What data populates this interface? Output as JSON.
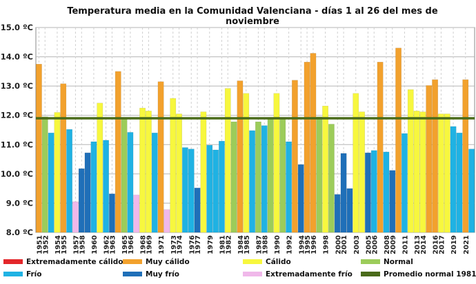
{
  "chart_data": {
    "type": "bar",
    "title": "Temperatura media en la Comunidad Valenciana - días 1 al 26 del mes de noviembre",
    "xlabel": "",
    "ylabel": "",
    "ylim": [
      8.0,
      15.0
    ],
    "yticks": [
      "8.0 ºC",
      "9.0 ºC",
      "10.0 ºC",
      "11.0 ºC",
      "12.0 ºC",
      "13.0 ºC",
      "14.0 ºC",
      "15.0 ºC"
    ],
    "grid": true,
    "legend_position": "bottom",
    "reference_line": {
      "name": "Promedio normal 1981-2010",
      "value": 11.9,
      "color": "#4a6b1a"
    },
    "categories_legend": [
      {
        "key": "xcal",
        "name": "Extremadamente cálido",
        "color": "#e3262a"
      },
      {
        "key": "mcal",
        "name": "Muy cálido",
        "color": "#f2a12d"
      },
      {
        "key": "cal",
        "name": "Cálido",
        "color": "#f7f73e"
      },
      {
        "key": "norm",
        "name": "Normal",
        "color": "#9ccc5a"
      },
      {
        "key": "frio",
        "name": "Frío",
        "color": "#1fb2e3"
      },
      {
        "key": "mfrio",
        "name": "Muy frío",
        "color": "#1f6fb8"
      },
      {
        "key": "xfrio",
        "name": "Extremadamente frío",
        "color": "#f0b8ea"
      },
      {
        "key": "prom",
        "name": "Promedio normal 1981-2010",
        "color": "#4a6b1a"
      }
    ],
    "categories": [
      "1951",
      "1952",
      "1953",
      "1954",
      "1955",
      "1956",
      "1957",
      "1958",
      "1959",
      "1960",
      "1961",
      "1962",
      "1963",
      "1964",
      "1965",
      "1966",
      "1967",
      "1968",
      "1969",
      "1970",
      "1971",
      "1972",
      "1973",
      "1974",
      "1975",
      "1976",
      "1977",
      "1978",
      "1979",
      "1980",
      "1981",
      "1982",
      "1983",
      "1984",
      "1985",
      "1986",
      "1987",
      "1988",
      "1989",
      "1990",
      "1991",
      "1992",
      "1993",
      "1994",
      "1995",
      "1996",
      "1997",
      "1998",
      "1999",
      "2000",
      "2001",
      "2002",
      "2003",
      "2004",
      "2005",
      "2006",
      "2007",
      "2008",
      "2009",
      "2010",
      "2011",
      "2012",
      "2013",
      "2014",
      "2015",
      "2016",
      "2017",
      "2018",
      "2019",
      "2020",
      "2021",
      "2022"
    ],
    "tick_labels": [
      "1951",
      "1952",
      "1954",
      "1955",
      "1957",
      "1958",
      "1960",
      "1962",
      "1963",
      "1965",
      "1966",
      "1968",
      "1969",
      "1971",
      "1973",
      "1974",
      "1976",
      "1977",
      "1979",
      "1981",
      "1982",
      "1984",
      "1985",
      "1987",
      "1988",
      "1990",
      "1992",
      "1994",
      "1995",
      "1996",
      "1998",
      "2000",
      "2001",
      "2003",
      "2005",
      "2006",
      "2008",
      "2009",
      "2011",
      "2013",
      "2014",
      "2016",
      "2017",
      "2019",
      "2021"
    ],
    "values": [
      13.75,
      11.95,
      11.4,
      12.1,
      13.08,
      11.52,
      9.05,
      10.18,
      10.72,
      11.1,
      12.42,
      11.15,
      9.32,
      13.5,
      11.9,
      11.42,
      9.28,
      12.25,
      12.15,
      11.4,
      13.15,
      8.78,
      12.58,
      12.05,
      10.9,
      10.85,
      9.52,
      12.12,
      10.98,
      10.82,
      11.12,
      12.92,
      11.78,
      13.18,
      12.75,
      11.48,
      11.78,
      11.65,
      11.88,
      12.75,
      11.92,
      11.1,
      13.2,
      10.32,
      13.82,
      14.12,
      11.95,
      12.32,
      11.7,
      9.3,
      10.7,
      9.5,
      12.75,
      12.12,
      10.72,
      10.8,
      13.82,
      10.75,
      10.12,
      14.3,
      11.38,
      12.88,
      12.15,
      12.12,
      13.02,
      13.22,
      12.05,
      12.05,
      11.62,
      11.4,
      13.22,
      10.85
    ],
    "classes": [
      "mcal",
      "norm",
      "frio",
      "cal",
      "mcal",
      "frio",
      "xfrio",
      "mfrio",
      "mfrio",
      "frio",
      "cal",
      "frio",
      "mfrio",
      "mcal",
      "norm",
      "frio",
      "xfrio",
      "cal",
      "cal",
      "frio",
      "mcal",
      "xfrio",
      "cal",
      "cal",
      "frio",
      "frio",
      "mfrio",
      "cal",
      "frio",
      "frio",
      "frio",
      "cal",
      "norm",
      "mcal",
      "cal",
      "frio",
      "norm",
      "frio",
      "norm",
      "cal",
      "norm",
      "frio",
      "mcal",
      "mfrio",
      "mcal",
      "mcal",
      "norm",
      "cal",
      "norm",
      "mfrio",
      "mfrio",
      "mfrio",
      "cal",
      "cal",
      "mfrio",
      "frio",
      "mcal",
      "frio",
      "mfrio",
      "mcal",
      "frio",
      "cal",
      "cal",
      "cal",
      "mcal",
      "mcal",
      "cal",
      "cal",
      "frio",
      "frio",
      "mcal",
      "frio"
    ]
  }
}
